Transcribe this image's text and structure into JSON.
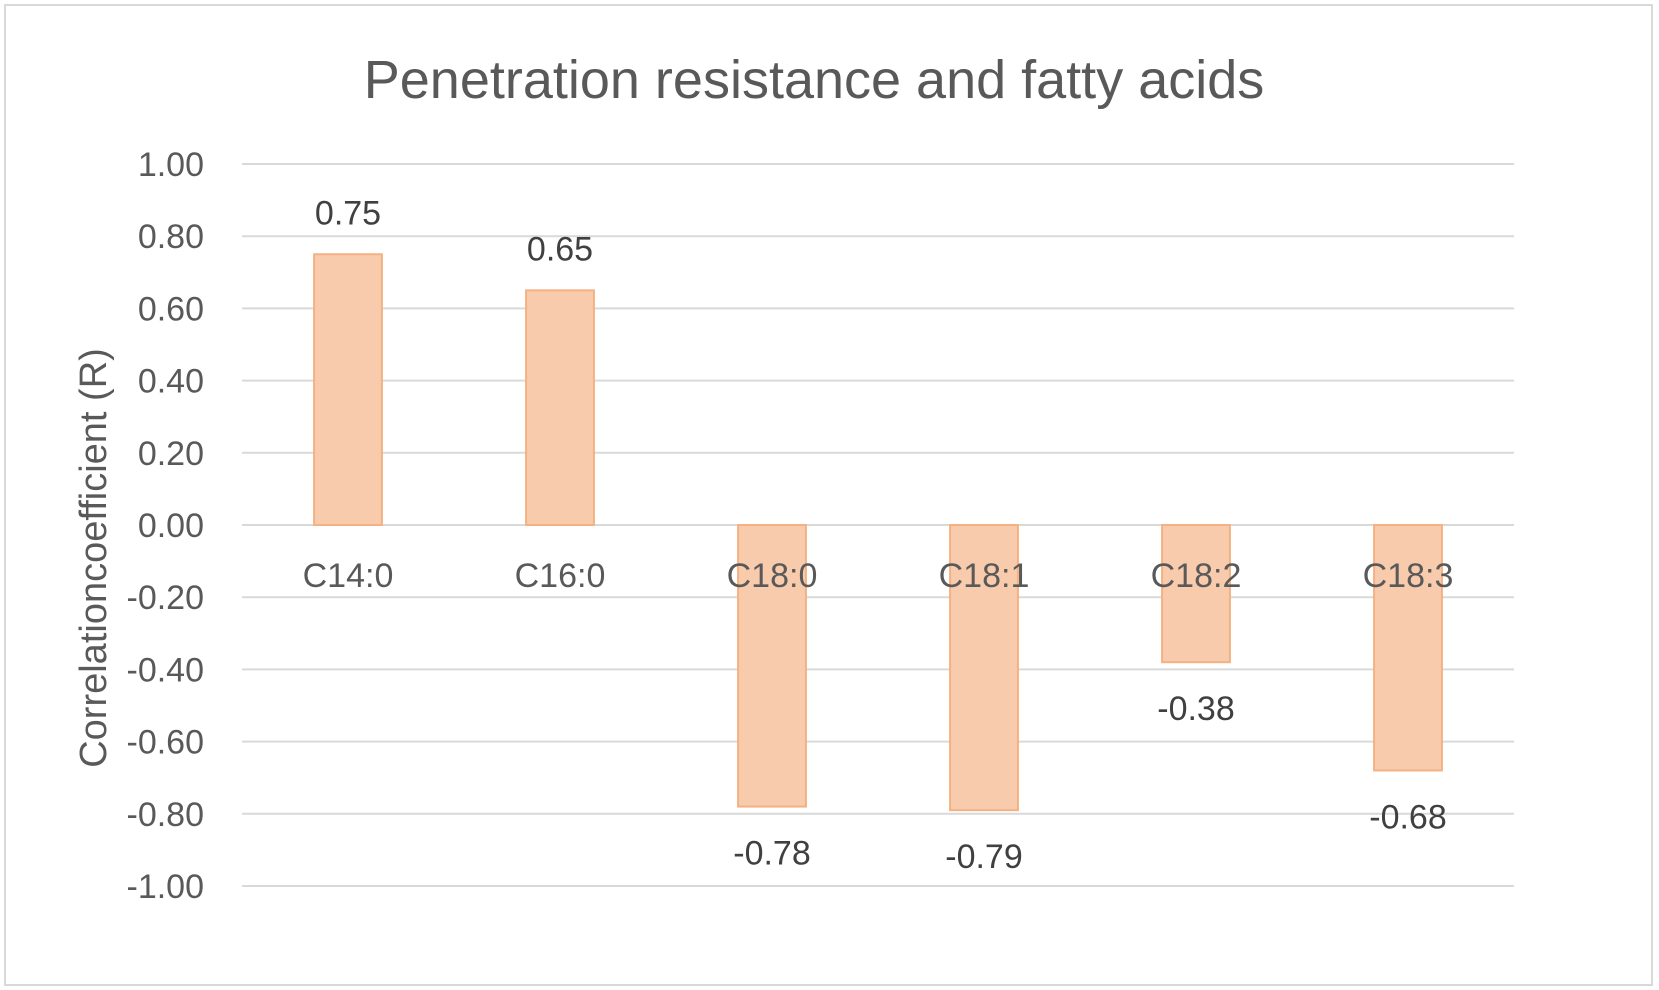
{
  "chart_data": {
    "type": "bar",
    "title": "Penetration resistance and fatty acids",
    "xlabel": "",
    "ylabel": "Correlationcoefficient (R)",
    "categories": [
      "C14:0",
      "C16:0",
      "C18:0",
      "C18:1",
      "C18:2",
      "C18:3"
    ],
    "values": [
      0.75,
      0.65,
      -0.78,
      -0.79,
      -0.38,
      -0.68
    ],
    "data_labels": [
      "0.75",
      "0.65",
      "-0.78",
      "-0.79",
      "-0.38",
      "-0.68"
    ],
    "ylim": [
      -1.0,
      1.0
    ],
    "yticks": [
      "1.00",
      "0.80",
      "0.60",
      "0.40",
      "0.20",
      "0.00",
      "-0.20",
      "-0.40",
      "-0.60",
      "-0.80",
      "-1.00"
    ],
    "ytick_values": [
      1.0,
      0.8,
      0.6,
      0.4,
      0.2,
      0.0,
      -0.2,
      -0.4,
      -0.6,
      -0.8,
      -1.0
    ],
    "grid": true,
    "legend": "none",
    "bar_fill": "#f8cbad",
    "bar_edge": "#f4b183"
  }
}
